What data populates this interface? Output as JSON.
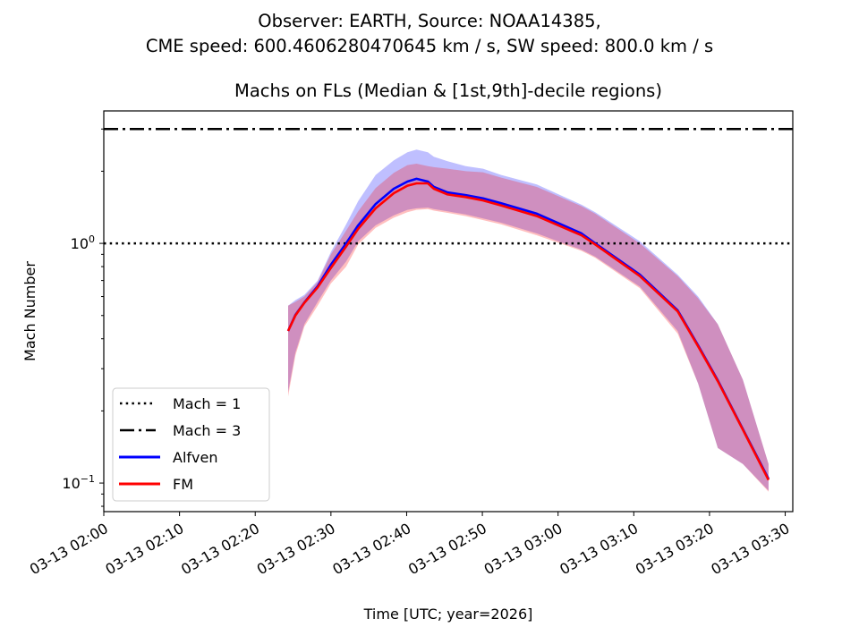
{
  "chart_data": {
    "type": "line",
    "suptitle": [
      "Observer: EARTH, Source: NOAA14385,",
      "CME speed: 600.4606280470645 km / s, SW speed: 800.0 km / s"
    ],
    "title": "Machs on FLs (Median & [1st,9th]-decile regions)",
    "xlabel": "Time [UTC; year=2026]",
    "ylabel": "Mach Number",
    "yscale": "log",
    "ylim": [
      0.076,
      3.57
    ],
    "x_unit": "minutes after 03-13 02:00 UTC",
    "xlim": [
      0,
      91.0
    ],
    "xticks": [
      {
        "value": 0,
        "label": "03-13 02:00"
      },
      {
        "value": 10,
        "label": "03-13 02:10"
      },
      {
        "value": 20,
        "label": "03-13 02:20"
      },
      {
        "value": 30,
        "label": "03-13 02:30"
      },
      {
        "value": 40,
        "label": "03-13 02:40"
      },
      {
        "value": 50,
        "label": "03-13 02:50"
      },
      {
        "value": 60,
        "label": "03-13 03:00"
      },
      {
        "value": 70,
        "label": "03-13 03:10"
      },
      {
        "value": 80,
        "label": "03-13 03:20"
      },
      {
        "value": 90,
        "label": "03-13 03:30"
      }
    ],
    "yticks": [
      {
        "value": 1,
        "base": "10",
        "exp": "0"
      },
      {
        "value": 0.1,
        "base": "10",
        "exp": "−1"
      }
    ],
    "hlines": [
      {
        "name": "Mach = 1",
        "value": 1,
        "style": "dotted",
        "color": "#000000"
      },
      {
        "name": "Mach = 3",
        "value": 3,
        "style": "dashdot",
        "color": "#000000"
      }
    ],
    "x": [
      24.35,
      25.3,
      26.5,
      28.25,
      30.0,
      32.0,
      33.6,
      35.9,
      38.3,
      40.1,
      41.3,
      42.8,
      43.6,
      45.4,
      47.8,
      50.1,
      52.5,
      57.2,
      63.1,
      64.9,
      70.8,
      75.8,
      78.5,
      81.1,
      84.4,
      87.8
    ],
    "series": [
      {
        "name": "Alfven",
        "color": "#0000ff",
        "median": [
          0.431,
          0.503,
          0.567,
          0.662,
          0.814,
          1.0,
          1.19,
          1.46,
          1.69,
          1.81,
          1.86,
          1.81,
          1.72,
          1.63,
          1.59,
          1.54,
          1.47,
          1.33,
          1.1,
          1.0,
          0.74,
          0.525,
          0.375,
          0.268,
          0.168,
          0.104
        ],
        "decile_1": [
          0.24,
          0.35,
          0.46,
          0.57,
          0.7,
          0.84,
          1.02,
          1.19,
          1.31,
          1.38,
          1.4,
          1.41,
          1.39,
          1.36,
          1.32,
          1.27,
          1.22,
          1.1,
          0.94,
          0.88,
          0.66,
          0.43,
          0.26,
          0.14,
          0.12,
          0.093
        ],
        "decile_9": [
          0.55,
          0.58,
          0.61,
          0.7,
          0.92,
          1.2,
          1.5,
          1.93,
          2.22,
          2.4,
          2.46,
          2.4,
          2.3,
          2.2,
          2.1,
          2.05,
          1.93,
          1.76,
          1.45,
          1.35,
          1.02,
          0.74,
          0.6,
          0.46,
          0.27,
          0.12
        ]
      },
      {
        "name": "FM",
        "color": "#ff0000",
        "median": [
          0.431,
          0.5,
          0.565,
          0.655,
          0.79,
          0.97,
          1.15,
          1.4,
          1.62,
          1.74,
          1.78,
          1.78,
          1.69,
          1.6,
          1.56,
          1.51,
          1.44,
          1.3,
          1.08,
          0.99,
          0.73,
          0.52,
          0.372,
          0.266,
          0.167,
          0.103
        ],
        "decile_1": [
          0.23,
          0.34,
          0.45,
          0.55,
          0.68,
          0.8,
          0.99,
          1.16,
          1.28,
          1.35,
          1.38,
          1.39,
          1.37,
          1.34,
          1.3,
          1.25,
          1.2,
          1.08,
          0.93,
          0.87,
          0.65,
          0.42,
          0.26,
          0.14,
          0.12,
          0.092
        ],
        "decile_9": [
          0.55,
          0.57,
          0.6,
          0.69,
          0.9,
          1.13,
          1.36,
          1.7,
          1.97,
          2.12,
          2.15,
          2.1,
          2.08,
          2.05,
          2.0,
          1.98,
          1.88,
          1.72,
          1.43,
          1.33,
          1.0,
          0.73,
          0.59,
          0.46,
          0.27,
          0.12
        ]
      }
    ],
    "legend": {
      "placement": "lower-left",
      "entries": [
        "Mach = 1",
        "Mach = 3",
        "Alfven",
        "FM"
      ]
    },
    "grid": false
  }
}
